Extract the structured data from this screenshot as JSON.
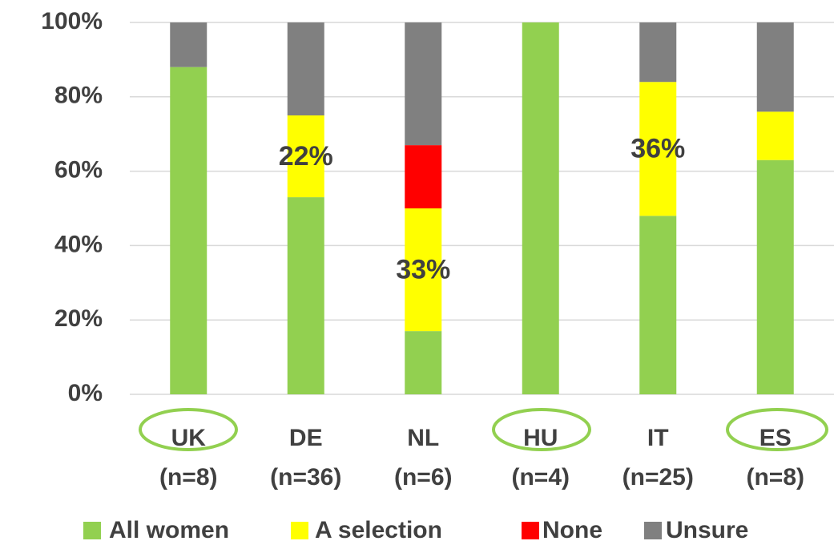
{
  "chart_data": {
    "type": "stacked_bar",
    "categories": [
      "UK",
      "DE",
      "NL",
      "HU",
      "IT",
      "ES"
    ],
    "sample_sizes": [
      "(n=8)",
      "(n=36)",
      "(n=6)",
      "(n=4)",
      "(n=25)",
      "(n=8)"
    ],
    "series": [
      {
        "name": "All women",
        "color": "#92d050",
        "values": [
          88,
          53,
          17,
          100,
          48,
          63
        ]
      },
      {
        "name": "A selection",
        "color": "#ffff00",
        "values": [
          0,
          22,
          33,
          0,
          36,
          13
        ],
        "value_labels": [
          null,
          "22%",
          "33%",
          null,
          "36%",
          null
        ]
      },
      {
        "name": "None",
        "color": "#ff0000",
        "values": [
          0,
          0,
          17,
          0,
          0,
          0
        ]
      },
      {
        "name": "Unsure",
        "color": "#808080",
        "values": [
          12,
          25,
          33,
          0,
          16,
          24
        ]
      }
    ],
    "ylim": [
      0,
      100
    ],
    "yticks": [
      {
        "value": 0,
        "label": "0%"
      },
      {
        "value": 20,
        "label": "20%"
      },
      {
        "value": 40,
        "label": "40%"
      },
      {
        "value": 60,
        "label": "60%"
      },
      {
        "value": 80,
        "label": "80%"
      },
      {
        "value": 100,
        "label": "100%"
      }
    ],
    "grid": true,
    "legend": "bottom"
  }
}
